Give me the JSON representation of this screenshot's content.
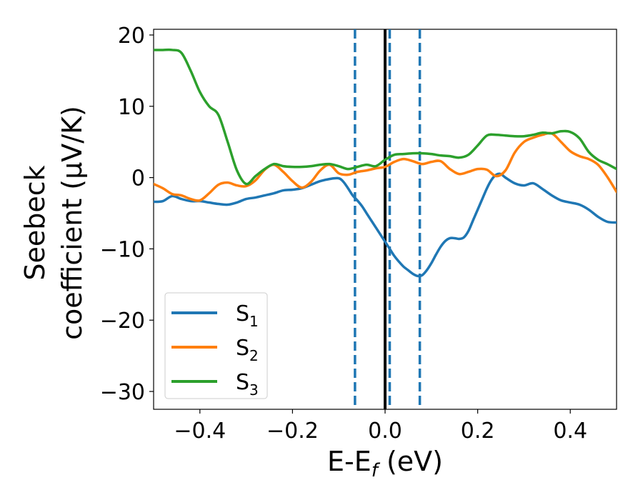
{
  "chart_data": {
    "type": "line",
    "title": "",
    "xlabel_main": "E-E",
    "xlabel_sub": "f",
    "xlabel_unit": " (eV)",
    "ylabel_line1": "Seebeck",
    "ylabel_line2": "coefficient  (μV/K)",
    "xlim": [
      -0.5,
      0.5
    ],
    "ylim": [
      -32.5,
      20.8
    ],
    "xticks": [
      -0.4,
      -0.2,
      0.0,
      0.2,
      0.4
    ],
    "xtick_labels": [
      "−0.4",
      "−0.2",
      "0.0",
      "0.2",
      "0.4"
    ],
    "yticks": [
      -30,
      -20,
      -10,
      0,
      10,
      20
    ],
    "ytick_labels": [
      "−30",
      "−20",
      "−10",
      "0",
      "10",
      "20"
    ],
    "grid": false,
    "legend_position": "lower-left",
    "vertical_lines": [
      {
        "x": 0.0,
        "style": "solid",
        "color": "#000000"
      },
      {
        "x": -0.065,
        "style": "dashed",
        "color": "#1f77b4"
      },
      {
        "x": 0.01,
        "style": "dashed",
        "color": "#1f77b4"
      },
      {
        "x": 0.075,
        "style": "dashed",
        "color": "#1f77b4"
      }
    ],
    "series": [
      {
        "name": "S",
        "sub": "1",
        "color": "#1f77b4",
        "x": [
          -0.5,
          -0.48,
          -0.46,
          -0.44,
          -0.42,
          -0.4,
          -0.38,
          -0.36,
          -0.34,
          -0.32,
          -0.3,
          -0.28,
          -0.26,
          -0.24,
          -0.22,
          -0.2,
          -0.18,
          -0.16,
          -0.14,
          -0.12,
          -0.1,
          -0.09,
          -0.08,
          -0.07,
          -0.06,
          -0.05,
          -0.04,
          -0.03,
          -0.02,
          -0.01,
          0.0,
          0.01,
          0.02,
          0.03,
          0.04,
          0.05,
          0.06,
          0.07,
          0.08,
          0.09,
          0.1,
          0.11,
          0.12,
          0.13,
          0.14,
          0.15,
          0.16,
          0.17,
          0.18,
          0.19,
          0.2,
          0.21,
          0.22,
          0.23,
          0.24,
          0.25,
          0.26,
          0.28,
          0.3,
          0.32,
          0.34,
          0.36,
          0.38,
          0.4,
          0.42,
          0.44,
          0.46,
          0.48,
          0.5
        ],
        "y": [
          -3.4,
          -3.3,
          -2.6,
          -3.0,
          -3.3,
          -3.3,
          -3.5,
          -3.7,
          -3.8,
          -3.5,
          -3.0,
          -2.8,
          -2.5,
          -2.2,
          -1.8,
          -1.7,
          -1.5,
          -1.0,
          -0.5,
          -0.2,
          -0.1,
          -0.6,
          -1.5,
          -2.5,
          -3.2,
          -4.0,
          -5.0,
          -6.0,
          -7.0,
          -8.0,
          -9.0,
          -10.0,
          -11.0,
          -11.8,
          -12.5,
          -13.0,
          -13.5,
          -13.8,
          -13.7,
          -13.0,
          -12.0,
          -10.8,
          -9.7,
          -8.9,
          -8.5,
          -8.5,
          -8.6,
          -8.4,
          -7.5,
          -6.0,
          -4.5,
          -3.0,
          -1.5,
          -0.3,
          0.4,
          0.5,
          0.0,
          -0.8,
          -1.1,
          -0.8,
          -1.6,
          -2.5,
          -3.2,
          -3.5,
          -3.8,
          -4.5,
          -5.5,
          -6.2,
          -6.3
        ]
      },
      {
        "name": "S",
        "sub": "2",
        "color": "#ff7f0e",
        "x": [
          -0.5,
          -0.48,
          -0.46,
          -0.44,
          -0.42,
          -0.4,
          -0.38,
          -0.36,
          -0.34,
          -0.32,
          -0.3,
          -0.28,
          -0.26,
          -0.24,
          -0.22,
          -0.2,
          -0.18,
          -0.16,
          -0.14,
          -0.12,
          -0.1,
          -0.08,
          -0.06,
          -0.04,
          -0.02,
          0.0,
          0.02,
          0.04,
          0.06,
          0.08,
          0.1,
          0.12,
          0.14,
          0.16,
          0.18,
          0.2,
          0.22,
          0.24,
          0.26,
          0.28,
          0.3,
          0.32,
          0.34,
          0.36,
          0.38,
          0.4,
          0.42,
          0.44,
          0.46,
          0.48,
          0.5
        ],
        "y": [
          -0.9,
          -1.5,
          -2.3,
          -2.5,
          -3.0,
          -3.2,
          -2.2,
          -1.0,
          -0.7,
          -1.1,
          -1.2,
          -0.4,
          1.1,
          1.8,
          0.8,
          -0.5,
          -1.4,
          -0.6,
          1.0,
          1.8,
          0.6,
          0.4,
          0.8,
          1.0,
          1.3,
          1.5,
          2.2,
          2.6,
          2.3,
          1.9,
          2.2,
          2.3,
          1.2,
          0.5,
          0.8,
          1.2,
          1.1,
          0.2,
          1.0,
          3.5,
          5.0,
          5.6,
          6.0,
          6.2,
          5.0,
          3.7,
          3.0,
          2.6,
          1.8,
          0.1,
          -2.0
        ]
      },
      {
        "name": "S",
        "sub": "3",
        "color": "#2ca02c",
        "x": [
          -0.5,
          -0.48,
          -0.46,
          -0.44,
          -0.42,
          -0.4,
          -0.38,
          -0.36,
          -0.34,
          -0.32,
          -0.3,
          -0.28,
          -0.26,
          -0.24,
          -0.22,
          -0.2,
          -0.18,
          -0.16,
          -0.14,
          -0.12,
          -0.1,
          -0.08,
          -0.06,
          -0.04,
          -0.02,
          0.0,
          0.02,
          0.04,
          0.06,
          0.08,
          0.1,
          0.12,
          0.14,
          0.16,
          0.18,
          0.2,
          0.22,
          0.24,
          0.26,
          0.28,
          0.3,
          0.32,
          0.34,
          0.36,
          0.38,
          0.4,
          0.42,
          0.44,
          0.46,
          0.48,
          0.5
        ],
        "y": [
          17.9,
          17.9,
          17.9,
          17.5,
          15.0,
          12.0,
          10.0,
          8.8,
          5.0,
          1.0,
          -0.9,
          0.2,
          1.2,
          1.9,
          1.6,
          1.5,
          1.5,
          1.6,
          1.8,
          1.9,
          1.6,
          1.2,
          1.5,
          1.8,
          1.6,
          2.5,
          3.2,
          3.3,
          3.4,
          3.4,
          3.3,
          3.1,
          3.0,
          2.8,
          3.2,
          4.5,
          5.9,
          6.0,
          5.9,
          5.8,
          5.8,
          6.0,
          6.3,
          6.2,
          6.5,
          6.4,
          5.5,
          3.6,
          2.5,
          1.9,
          1.2
        ]
      }
    ]
  }
}
